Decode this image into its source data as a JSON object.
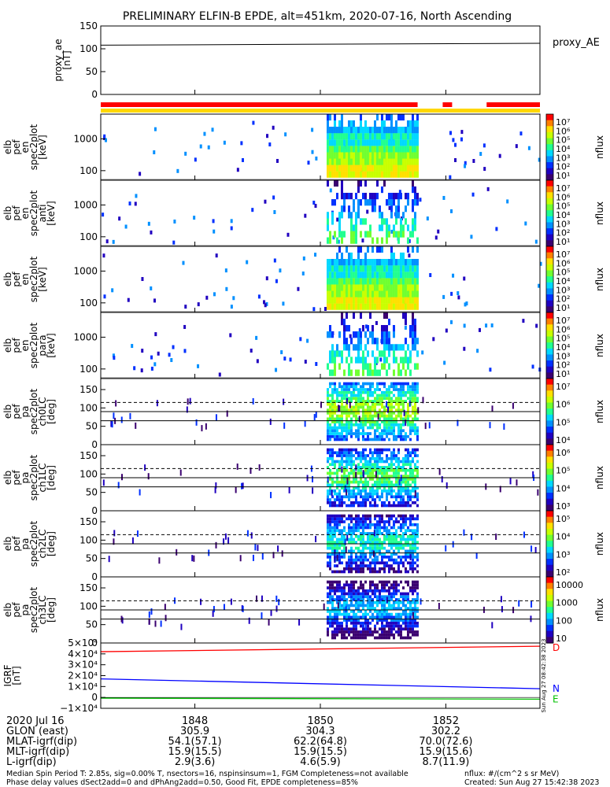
{
  "title": "PRELIMINARY ELFIN-B EPDE, alt=451km, 2020-07-16, North Ascending",
  "status_bars": {
    "top_color": "#ff0000",
    "bottom_color": "#ffd700"
  },
  "panels": [
    {
      "id": "proxy-ae",
      "kind": "line",
      "ylabel": [
        "proxy_ae",
        "[nT]"
      ],
      "yticks": [
        "150",
        "100",
        "50",
        "0"
      ],
      "right_label": "proxy_AE"
    },
    {
      "id": "spec-en-anti",
      "kind": "spectrogram",
      "ylabel": [
        "elb",
        "pef",
        "en",
        "spec2plot",
        "[keV]"
      ],
      "yticks": [
        "1000",
        "100"
      ],
      "cbar": [
        "10⁷",
        "10⁶",
        "10⁵",
        "10⁴",
        "10³",
        "10²",
        "10¹"
      ],
      "cbar_label": "nflux"
    },
    {
      "id": "spec-en-perp",
      "kind": "spectrogram",
      "ylabel": [
        "elb",
        "pef",
        "en",
        "spec2plot",
        "anti",
        "[keV]"
      ],
      "yticks": [
        "1000",
        "100"
      ],
      "cbar": [
        "10⁷",
        "10⁶",
        "10⁵",
        "10⁴",
        "10³",
        "10²",
        "10¹"
      ],
      "cbar_label": "nflux"
    },
    {
      "id": "spec-en-para",
      "kind": "spectrogram",
      "ylabel": [
        "elb",
        "pef",
        "en",
        "spec2plot",
        "[keV]"
      ],
      "yticks": [
        "1000",
        "100"
      ],
      "cbar": [
        "10⁷",
        "10⁶",
        "10⁵",
        "10⁴",
        "10³",
        "10²",
        "10¹"
      ],
      "cbar_label": "nflux"
    },
    {
      "id": "spec-en-para2",
      "kind": "spectrogram",
      "ylabel": [
        "elb",
        "pef",
        "en",
        "spec2plot",
        "para",
        "[keV]"
      ],
      "yticks": [
        "1000",
        "100"
      ],
      "cbar": [
        "10⁷",
        "10⁶",
        "10⁵",
        "10⁴",
        "10³",
        "10²",
        "10¹"
      ],
      "cbar_label": "nflux"
    },
    {
      "id": "spec-pa-ch0",
      "kind": "pitch",
      "ylabel": [
        "elb",
        "pef",
        "pa",
        "spec2plot",
        "ch0LC",
        "[deg]"
      ],
      "yticks": [
        "150",
        "100",
        "50",
        "0"
      ],
      "cbar": [
        "10⁷",
        "10⁶",
        "10⁵",
        "10⁴"
      ],
      "cbar_label": "nflux"
    },
    {
      "id": "spec-pa-ch1",
      "kind": "pitch",
      "ylabel": [
        "elb",
        "pef",
        "pa",
        "spec2plot",
        "ch1LC",
        "[deg]"
      ],
      "yticks": [
        "150",
        "100",
        "50",
        "0"
      ],
      "cbar": [
        "10⁶",
        "10⁵",
        "10⁴",
        "10³"
      ],
      "cbar_label": "nflux"
    },
    {
      "id": "spec-pa-ch2",
      "kind": "pitch",
      "ylabel": [
        "elb",
        "pef",
        "pa",
        "spec2plot",
        "ch2LC",
        "[deg]"
      ],
      "yticks": [
        "150",
        "100",
        "50",
        "0"
      ],
      "cbar": [
        "10⁵",
        "10⁴",
        "10³",
        "10²"
      ],
      "cbar_label": "nflux"
    },
    {
      "id": "spec-pa-ch3",
      "kind": "pitch",
      "ylabel": [
        "elb",
        "pef",
        "pa",
        "spec2plot",
        "ch3LC",
        "[deg]"
      ],
      "yticks": [
        "150",
        "100",
        "50",
        "0"
      ],
      "cbar": [
        "10000",
        "1000",
        "100",
        "10"
      ],
      "cbar_label": "nflux"
    },
    {
      "id": "igrf",
      "kind": "igrf",
      "ylabel": [
        "IGRF",
        "[nT]"
      ],
      "yticks": [
        "5×10⁴",
        "4×10⁴",
        "3×10⁴",
        "2×10⁴",
        "1×10⁴",
        "0",
        "−1×10⁴"
      ],
      "component_labels": [
        "D",
        "N",
        "E"
      ],
      "component_colors": [
        "#ff0000",
        "#0000ff",
        "#00c000"
      ],
      "side_stamp": "Sun Aug 27 08:42:38 2023"
    }
  ],
  "chart_data": {
    "type": "heatmap",
    "x_time_ticks": [
      "1848",
      "1850",
      "1852"
    ],
    "proxy_ae_nT": {
      "x": [
        "1846.5",
        "1853.5"
      ],
      "y": [
        108,
        112
      ],
      "ylim": [
        0,
        150
      ]
    },
    "energy_axis_keV": {
      "ylim": [
        50,
        6000
      ],
      "scale": "log"
    },
    "pitch_axis_deg": {
      "ylim": [
        0,
        180
      ],
      "solid_lines": [
        90,
        65
      ],
      "dashed_line": 115
    },
    "igrf_nT": {
      "ylim": [
        -10000,
        50000
      ],
      "series": [
        {
          "name": "D",
          "start": 42000,
          "end": 47000
        },
        {
          "name": "N",
          "start": 17000,
          "end": 8000
        },
        {
          "name": "E",
          "start": -700,
          "end": -1600
        }
      ]
    },
    "colorbar": {
      "scale": "log",
      "label": "nflux"
    }
  },
  "footer": {
    "row_labels": [
      "2020 Jul 16",
      "GLON (east)",
      "MLAT-igrf(dip)",
      "MLT-igrf(dip)",
      "L-igrf(dip)"
    ],
    "columns": [
      [
        "1848",
        "305.9",
        "54.1(57.1)",
        "15.9(15.5)",
        "2.9(3.6)"
      ],
      [
        "1850",
        "304.3",
        "62.2(64.8)",
        "15.9(15.5)",
        "4.6(5.9)"
      ],
      [
        "1852",
        "302.2",
        "70.0(72.6)",
        "15.9(15.6)",
        "8.7(11.9)"
      ]
    ],
    "note_left_1": "Median Spin Period T: 2.85s, sig=0.00% T, nsectors=16, nspinsinsum=1, FGM Completeness=not available",
    "note_left_2": "Phase delay values dSect2add=0 and dPhAng2add=0.50, Good Fit, EPDE completeness=85%",
    "note_right_1": "nflux: #/(cm^2 s sr MeV)",
    "note_right_2": "Created: Sun Aug 27 15:42:38 2023"
  }
}
